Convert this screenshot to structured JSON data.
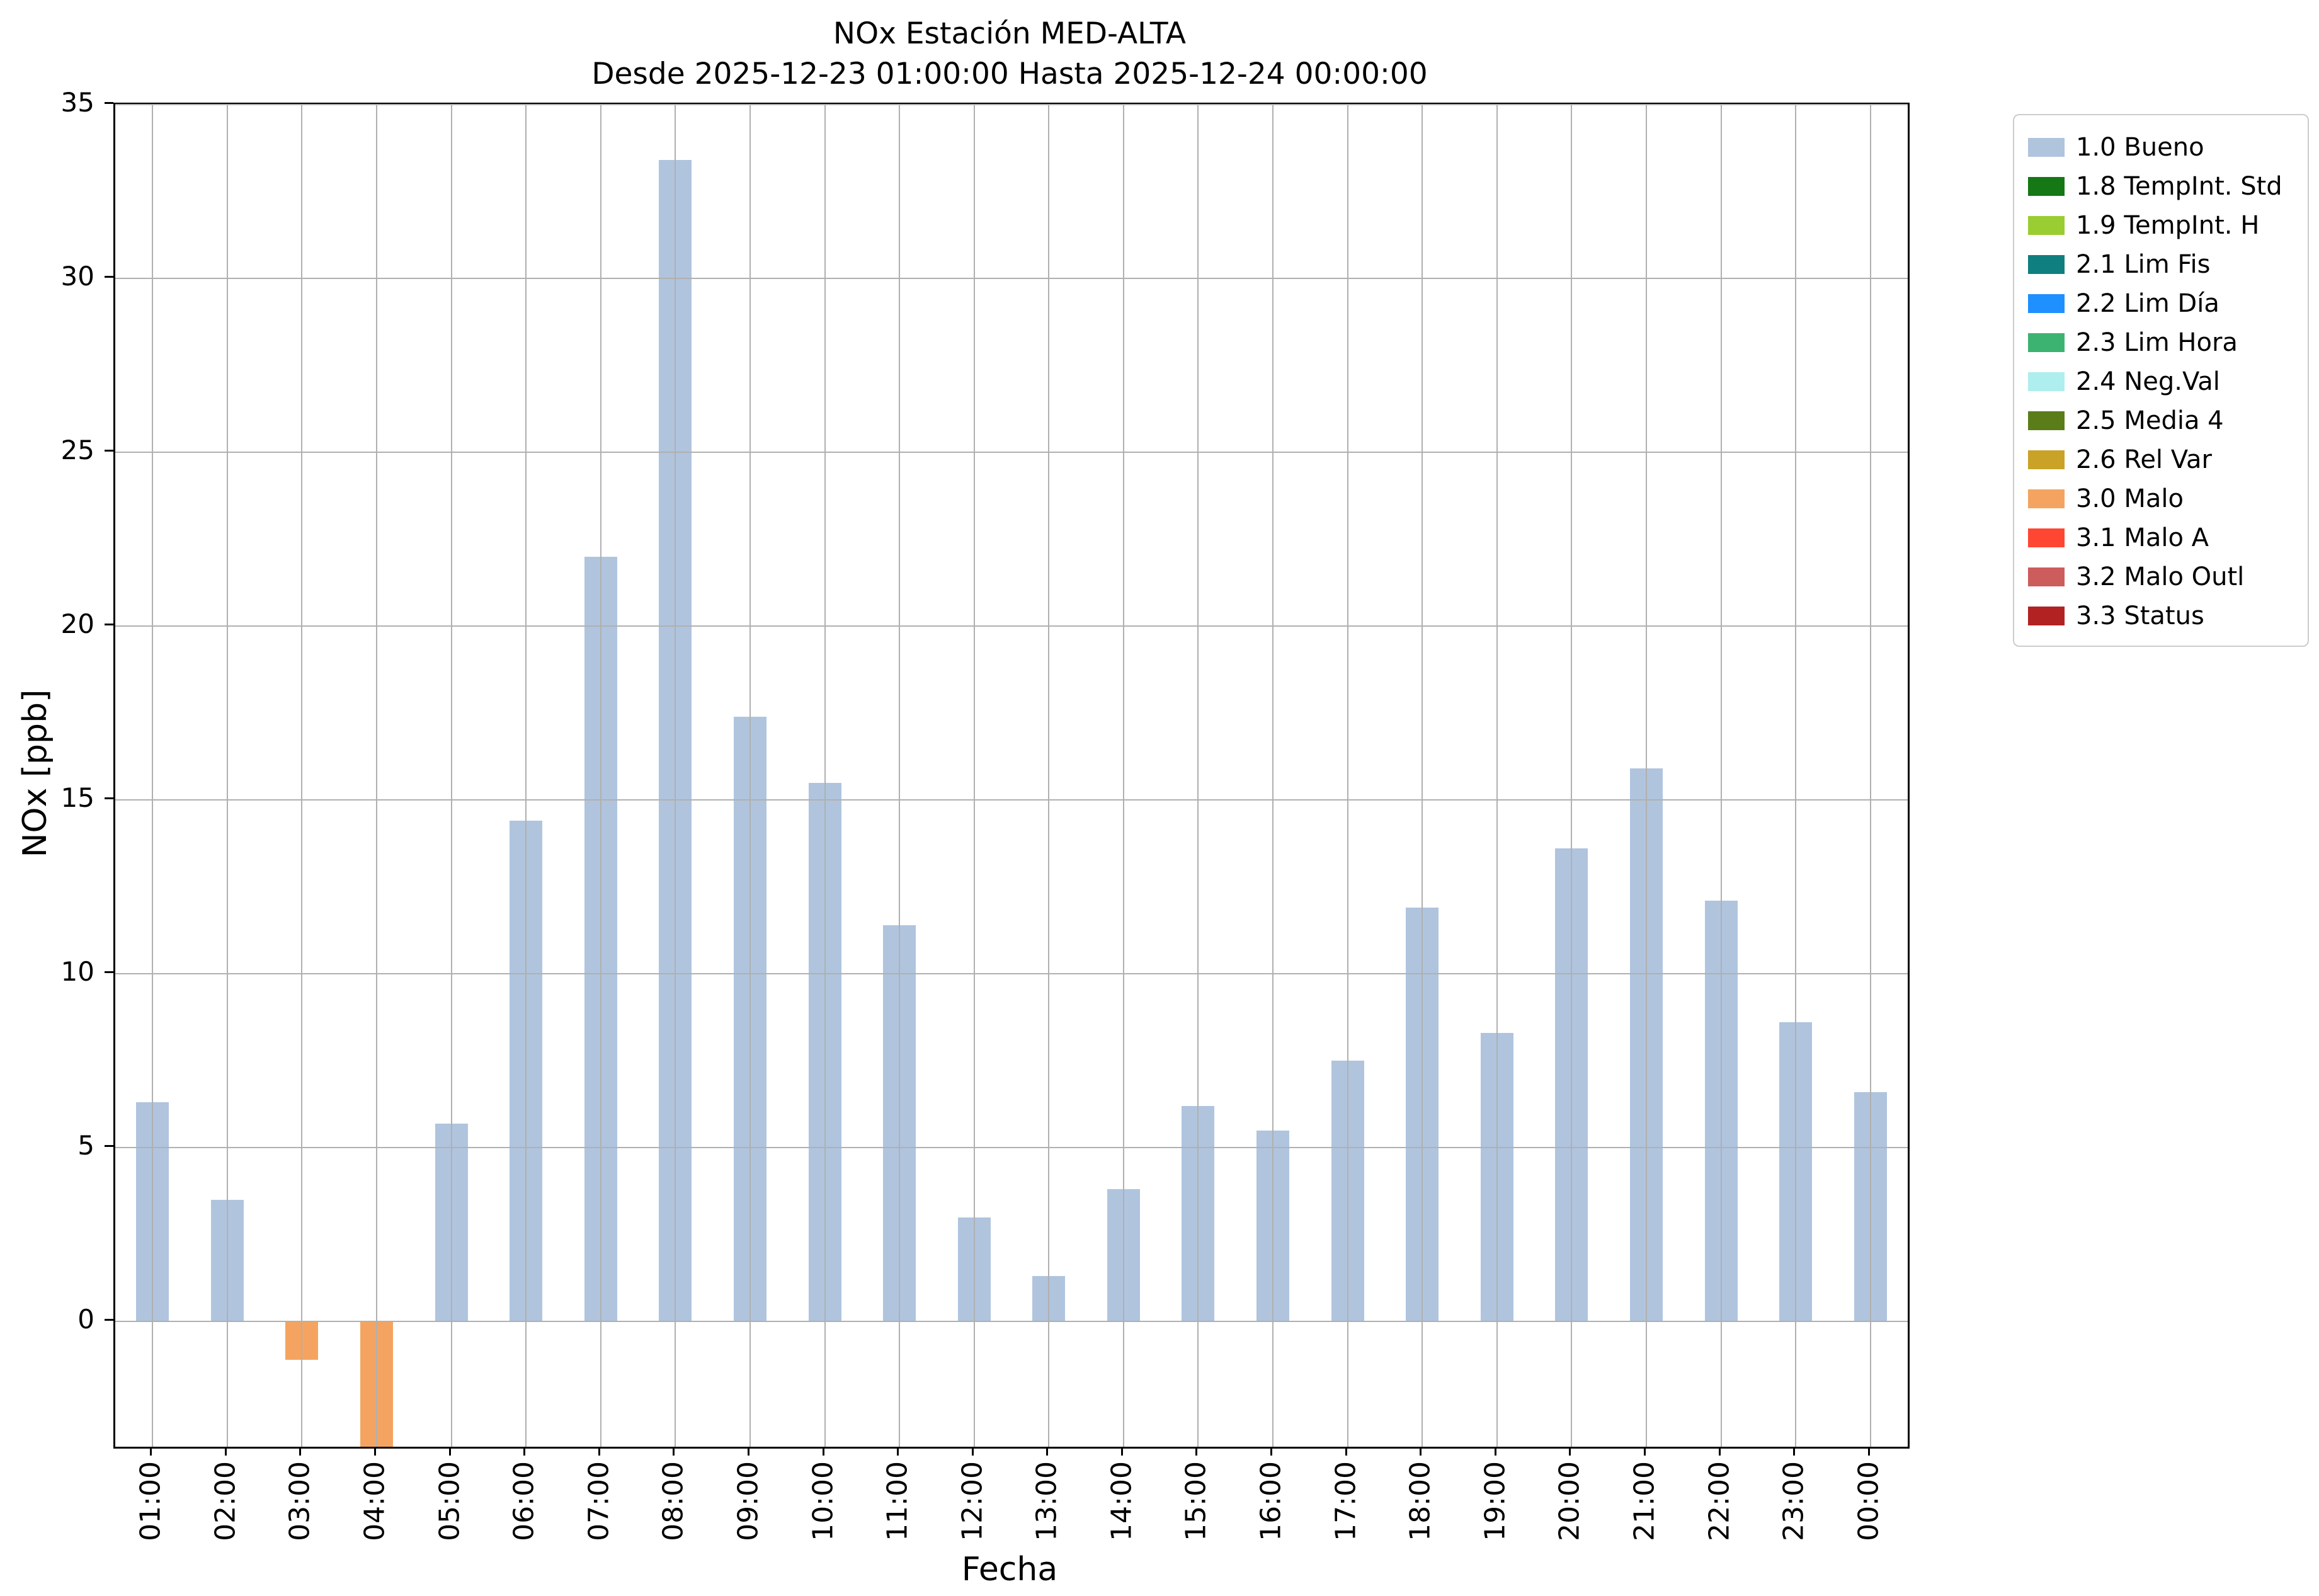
{
  "chart": {
    "title_line1": "NOx Estación MED-ALTA",
    "title_line2": "Desde 2025-12-23 01:00:00 Hasta 2025-12-24 00:00:00",
    "xlabel": "Fecha",
    "ylabel": "NOx [ppb]"
  },
  "chart_data": {
    "type": "bar",
    "title": "NOx Estación MED-ALTA",
    "subtitle": "Desde 2025-12-23 01:00:00 Hasta 2025-12-24 00:00:00",
    "xlabel": "Fecha",
    "ylabel": "NOx [ppb]",
    "ylim": [
      -3.6,
      35
    ],
    "yticks": [
      0,
      5,
      10,
      15,
      20,
      25,
      30,
      35
    ],
    "grid": true,
    "legend_position": "outside-top-right",
    "categories": [
      "01:00",
      "02:00",
      "03:00",
      "04:00",
      "05:00",
      "06:00",
      "07:00",
      "08:00",
      "09:00",
      "10:00",
      "11:00",
      "12:00",
      "13:00",
      "14:00",
      "15:00",
      "16:00",
      "17:00",
      "18:00",
      "19:00",
      "20:00",
      "21:00",
      "22:00",
      "23:00",
      "00:00"
    ],
    "series": [
      {
        "name": "NOx",
        "values": [
          6.3,
          3.5,
          -1.1,
          -3.6,
          5.7,
          14.4,
          22.0,
          33.4,
          17.4,
          15.5,
          11.4,
          3.0,
          1.3,
          3.8,
          6.2,
          5.5,
          7.5,
          11.9,
          8.3,
          13.6,
          15.9,
          12.1,
          8.6,
          6.6
        ]
      }
    ],
    "bar_status": [
      "1.0 Bueno",
      "1.0 Bueno",
      "3.0 Malo",
      "3.0 Malo",
      "1.0 Bueno",
      "1.0 Bueno",
      "1.0 Bueno",
      "1.0 Bueno",
      "1.0 Bueno",
      "1.0 Bueno",
      "1.0 Bueno",
      "1.0 Bueno",
      "1.0 Bueno",
      "1.0 Bueno",
      "1.0 Bueno",
      "1.0 Bueno",
      "1.0 Bueno",
      "1.0 Bueno",
      "1.0 Bueno",
      "1.0 Bueno",
      "1.0 Bueno",
      "1.0 Bueno",
      "1.0 Bueno",
      "1.0 Bueno"
    ],
    "status_colors": {
      "1.0 Bueno": "#b0c4de",
      "3.0 Malo": "#f4a460"
    },
    "legend": [
      {
        "label": "1.0 Bueno",
        "color": "#b0c4de"
      },
      {
        "label": "1.8 TempInt. Std",
        "color": "#157815"
      },
      {
        "label": "1.9 TempInt. H",
        "color": "#9acd32"
      },
      {
        "label": "2.1 Lim Fis",
        "color": "#0f7f7f"
      },
      {
        "label": "2.2 Lim Día",
        "color": "#1e90ff"
      },
      {
        "label": "2.3 Lim Hora",
        "color": "#3cb371"
      },
      {
        "label": "2.4 Neg.Val",
        "color": "#afeeee"
      },
      {
        "label": "2.5 Media 4",
        "color": "#5a7d1a"
      },
      {
        "label": "2.6 Rel Var",
        "color": "#c9a227"
      },
      {
        "label": "3.0 Malo",
        "color": "#f4a460"
      },
      {
        "label": "3.1 Malo A",
        "color": "#ff4632"
      },
      {
        "label": "3.2 Malo Outl",
        "color": "#cd5c5c"
      },
      {
        "label": "3.3 Status",
        "color": "#b22222"
      }
    ]
  }
}
